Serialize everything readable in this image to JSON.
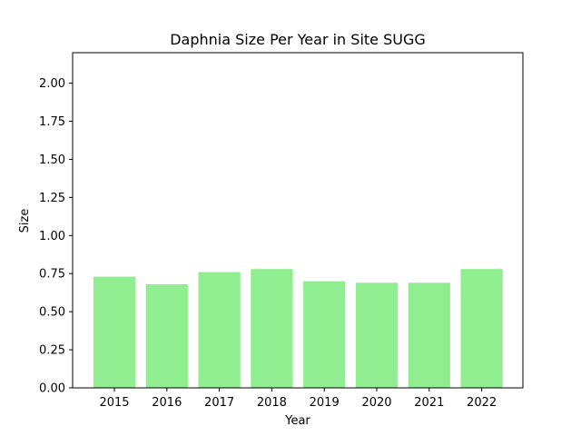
{
  "chart_data": {
    "type": "bar",
    "title": "Daphnia Size Per Year in Site SUGG",
    "xlabel": "Year",
    "ylabel": "Size",
    "categories": [
      "2015",
      "2016",
      "2017",
      "2018",
      "2019",
      "2020",
      "2021",
      "2022"
    ],
    "values": [
      0.73,
      0.68,
      0.76,
      0.78,
      0.7,
      0.69,
      0.69,
      0.78
    ],
    "ylim": [
      0,
      2.2
    ],
    "yticks": [
      "0.00",
      "0.25",
      "0.50",
      "0.75",
      "1.00",
      "1.25",
      "1.50",
      "1.75",
      "2.00"
    ],
    "bar_color": "#90ee90",
    "grid": false,
    "legend": "none"
  }
}
